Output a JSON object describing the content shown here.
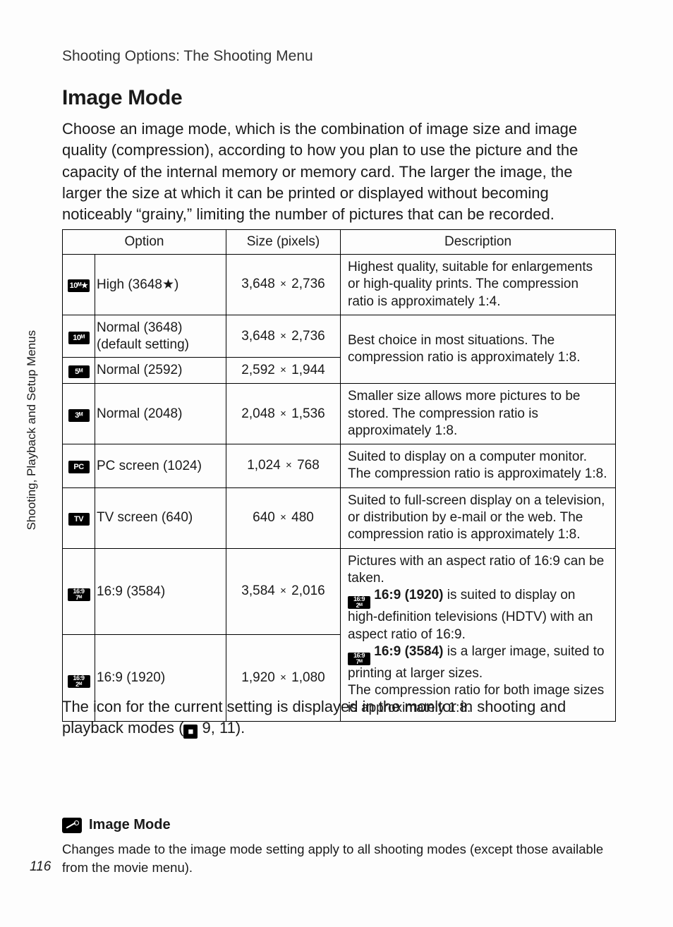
{
  "breadcrumb": "Shooting Options: The Shooting Menu",
  "title": "Image Mode",
  "intro": "Choose an image mode, which is the combination of image size and image quality (compression), according to how you plan to use the picture and the capacity of the internal memory or memory card. The larger the image, the larger the size at which it can be printed or displayed without becoming noticeably “grainy,” limiting the number of pictures that can be recorded.",
  "sidelabel": "Shooting, Playback and Setup Menus",
  "table": {
    "headers": {
      "option": "Option",
      "size": "Size (pixels)",
      "description": "Description"
    },
    "rows": [
      {
        "icon": "10ᴹ★",
        "option_html": "High (3648★)",
        "size_html": "3,648 <span class='x'>×</span> 2,736",
        "desc_html": "Highest quality, suitable for enlargements or high-quality prints. The compression ratio is approximately 1:4."
      },
      {
        "icon": "10ᴹ",
        "option_html": "Normal (3648)<br>(default setting)",
        "size_html": "3,648 <span class='x'>×</span> 2,736",
        "desc_html": "Best choice in most situations. The compression ratio is approximately 1:8.",
        "desc_rowspan": 2
      },
      {
        "icon": "5ᴹ",
        "option_html": "Normal (2592)",
        "size_html": "2,592 <span class='x'>×</span> 1,944"
      },
      {
        "icon": "3ᴹ",
        "option_html": "Normal (2048)",
        "size_html": "2,048 <span class='x'>×</span> 1,536",
        "desc_html": "Smaller size allows more pictures to be stored. The compression ratio is approximately 1:8."
      },
      {
        "icon": "PC",
        "option_html": "PC screen (1024)",
        "size_html": "1,024 <span class='x'>×</span> 768",
        "desc_html": "Suited to display on a computer monitor. The compression ratio is approximately 1:8."
      },
      {
        "icon": "TV",
        "option_html": "TV screen (640)",
        "size_html": "640 <span class='x'>×</span> 480",
        "desc_html": "Suited to full-screen display on a television, or distribution by e-mail or the web. The compression ratio is approximately 1:8."
      },
      {
        "icon_dbl": [
          "16:9",
          "7ᴹ"
        ],
        "option_html": "16:9 (3584)",
        "size_html": "3,584 <span class='x'>×</span> 2,016",
        "desc_html": "Pictures with an aspect ratio of 16:9 can be taken.<br><span class='ico dbl' style='vertical-align:-3px'><span>16:9</span><span>2ᴹ</span></span> <b>16:9 (1920)</b> is suited to display on high-definition televisions (HDTV) with an aspect ratio of 16:9.<br><span class='ico dbl' style='vertical-align:-3px'><span>16:9</span><span>7ᴹ</span></span> <b>16:9 (3584)</b> is a larger image, suited to printing at larger sizes.<br>The compression ratio for both image sizes is approximately 1:8.",
        "desc_rowspan": 2
      },
      {
        "icon_dbl": [
          "16:9",
          "2ᴹ"
        ],
        "option_html": "16:9 (1920)",
        "size_html": "1,920 <span class='x'>×</span> 1,080"
      }
    ]
  },
  "postnote_html": "The icon for the current setting is displayed in the monitor in shooting and playback modes (<span class='pageref'>■</span> 9, 11).",
  "note": {
    "title": "Image Mode",
    "text": "Changes made to the image mode setting apply to all shooting modes (except those available from the movie menu)."
  },
  "pagenum": "116",
  "colors": {
    "page_bg": "#fdfdfd",
    "outer_bg": "#e0e0e0",
    "text": "#1a1a1a",
    "border": "#000000"
  },
  "fonts": {
    "body_pt": 22,
    "title_pt": 30,
    "table_pt": 19,
    "note_pt": 18.5
  }
}
